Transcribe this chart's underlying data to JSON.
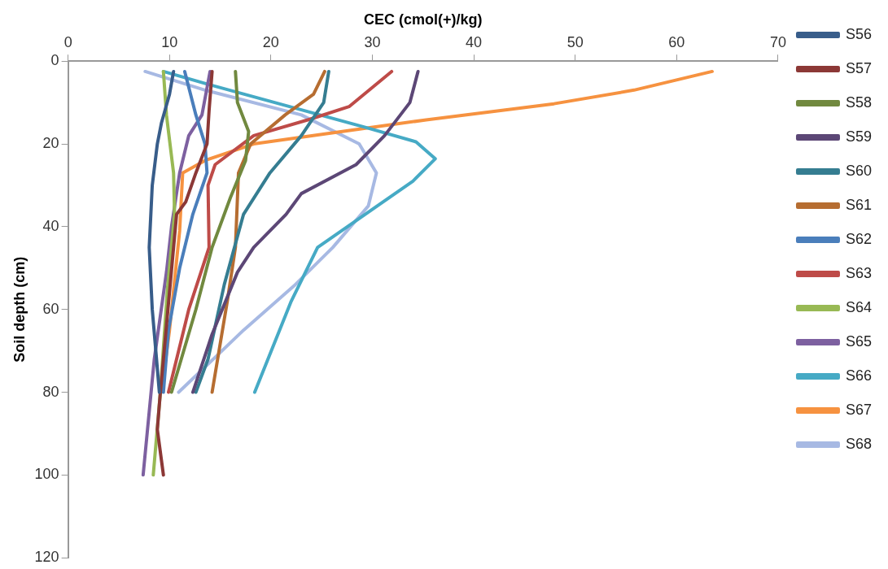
{
  "chart_data": {
    "type": "line",
    "xlabel": "CEC (cmol(+)/kg)",
    "ylabel": "Soil depth (cm)",
    "xlim": [
      0,
      70
    ],
    "xticks": [
      0,
      10,
      20,
      30,
      40,
      50,
      60,
      70
    ],
    "ylim": [
      120,
      0
    ],
    "yticks": [
      0,
      20,
      40,
      60,
      80,
      100,
      120
    ],
    "grid": false,
    "legend": "right",
    "marker": "none",
    "line_style": "solid",
    "series": [
      {
        "name": "S56",
        "color": "#385d8a",
        "x": [
          10.4,
          10,
          9.2,
          8.8,
          8.3,
          8.0,
          8.3,
          9.0
        ],
        "values": [
          2.5,
          8,
          15,
          20,
          30,
          45,
          60,
          80
        ]
      },
      {
        "name": "S57",
        "color": "#8c3836",
        "x": [
          14.2,
          13.9,
          13.7,
          12.6,
          11.6,
          10.7,
          9.1,
          8.8,
          9.4
        ],
        "values": [
          2.5,
          12,
          20,
          27,
          34,
          37,
          80,
          89,
          100
        ]
      },
      {
        "name": "S58",
        "color": "#71893f",
        "x": [
          16.5,
          16.7,
          17.8,
          17.5,
          16,
          14.2,
          12.6,
          10.2
        ],
        "values": [
          2.5,
          10,
          17,
          24,
          33,
          45,
          60,
          80
        ]
      },
      {
        "name": "S59",
        "color": "#5c4776",
        "x": [
          34.5,
          33.7,
          31.2,
          28.4,
          23,
          21.5,
          18.3,
          16.7,
          14.2,
          12.3
        ],
        "values": [
          2.5,
          10,
          18,
          25,
          32,
          37,
          45,
          51,
          66,
          80
        ]
      },
      {
        "name": "S60",
        "color": "#357d91",
        "x": [
          25.7,
          25.2,
          23,
          19.9,
          17.3,
          15.4,
          13.8,
          12.6
        ],
        "values": [
          2.5,
          10,
          18,
          27,
          37,
          54,
          72,
          80
        ]
      },
      {
        "name": "S61",
        "color": "#b66d31",
        "x": [
          25.3,
          24.2,
          21.4,
          18,
          16.8,
          16.5,
          15.7,
          14.2
        ],
        "values": [
          2.5,
          8,
          13,
          20,
          27,
          45,
          58,
          80
        ]
      },
      {
        "name": "S62",
        "color": "#4a7ebb",
        "x": [
          11.5,
          12.6,
          13.5,
          13.7,
          12.3,
          11,
          9.9,
          9.4
        ],
        "values": [
          2.5,
          13,
          20,
          27,
          37,
          50,
          65,
          80
        ]
      },
      {
        "name": "S63",
        "color": "#be4b48",
        "x": [
          31.9,
          27.7,
          23.9,
          18.3,
          14.5,
          13.8,
          13.9,
          11.9,
          9.9
        ],
        "values": [
          2.5,
          11,
          14,
          18,
          25,
          30,
          45,
          60,
          80
        ]
      },
      {
        "name": "S64",
        "color": "#98b954",
        "x": [
          9.4,
          9.7,
          10.4,
          10.5,
          9.8,
          9.1,
          8.4
        ],
        "values": [
          2.5,
          13,
          27,
          37,
          55,
          80,
          100
        ]
      },
      {
        "name": "S65",
        "color": "#7d60a0",
        "x": [
          14,
          13.2,
          11.9,
          11,
          10.2,
          9.7,
          8.5,
          7.4
        ],
        "values": [
          2.5,
          13,
          18,
          27,
          40,
          51,
          72,
          100
        ]
      },
      {
        "name": "S66",
        "color": "#46aac5",
        "x": [
          9.4,
          13.5,
          29.3,
          34.3,
          36.2,
          34,
          29.3,
          24.6,
          22,
          18.4
        ],
        "values": [
          2.5,
          5.4,
          16,
          19.5,
          23.6,
          29,
          37,
          45,
          58,
          80
        ]
      },
      {
        "name": "S67",
        "color": "#f69240",
        "x": [
          63.5,
          55.8,
          47.9,
          35.3,
          29.9,
          18.3,
          13.5,
          11.3,
          11,
          10,
          9.2
        ],
        "values": [
          2.5,
          7,
          10.3,
          14.2,
          16,
          20,
          24,
          27,
          41,
          65,
          80
        ]
      },
      {
        "name": "S68",
        "color": "#a7b9e3",
        "x": [
          7.6,
          13.5,
          23,
          28.7,
          30.4,
          29.6,
          26.1,
          22.4,
          17.3,
          10.9
        ],
        "values": [
          2.5,
          7,
          13,
          20,
          27,
          35,
          45,
          54,
          65,
          80
        ]
      }
    ]
  }
}
